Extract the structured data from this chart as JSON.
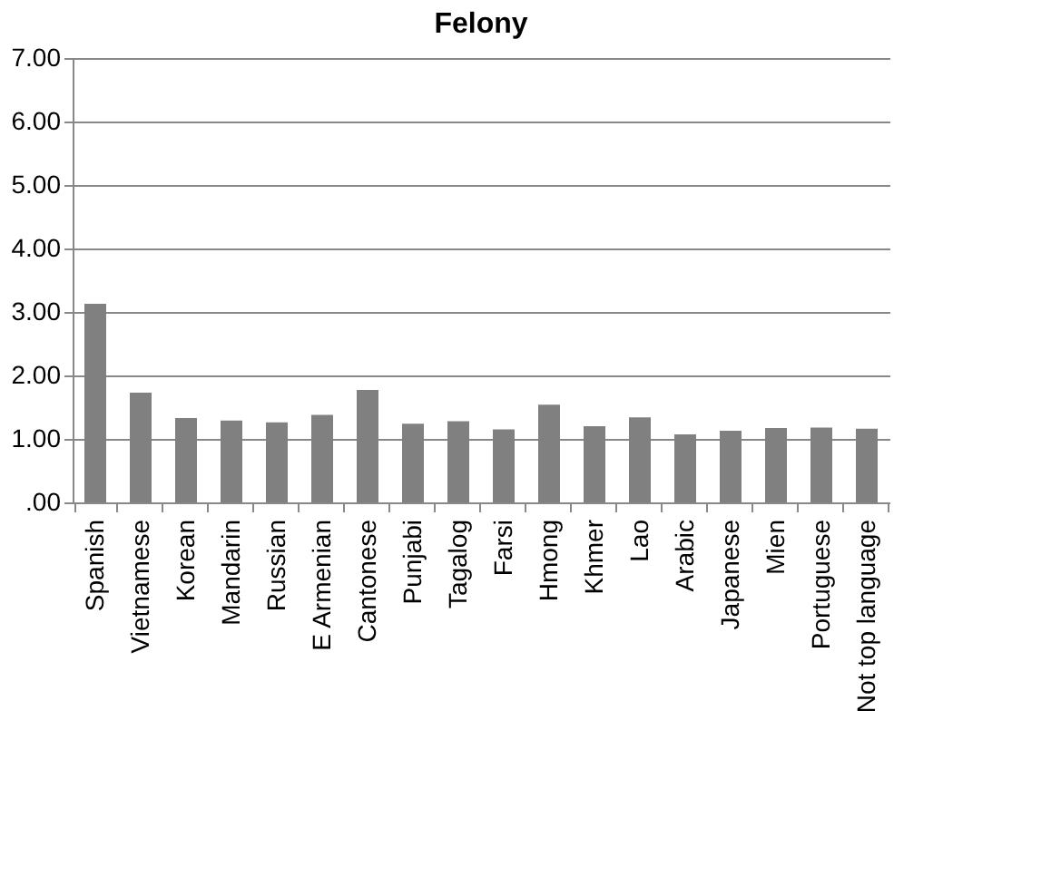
{
  "chart_data": {
    "type": "bar",
    "title": "Felony",
    "categories": [
      "Spanish",
      "Vietnamese",
      "Korean",
      "Mandarin",
      "Russian",
      "E Armenian",
      "Cantonese",
      "Punjabi",
      "Tagalog",
      "Farsi",
      "Hmong",
      "Khmer",
      "Lao",
      "Arabic",
      "Japanese",
      "Mien",
      "Portuguese",
      "Not top language"
    ],
    "values": [
      3.13,
      1.73,
      1.33,
      1.29,
      1.26,
      1.38,
      1.77,
      1.24,
      1.28,
      1.15,
      1.54,
      1.2,
      1.34,
      1.07,
      1.13,
      1.17,
      1.18,
      1.16
    ],
    "color": "#808080",
    "ylim": [
      0,
      7
    ],
    "yticks": [
      {
        "value": 0,
        "label": ".00"
      },
      {
        "value": 1,
        "label": "1.00"
      },
      {
        "value": 2,
        "label": "2.00"
      },
      {
        "value": 3,
        "label": "3.00"
      },
      {
        "value": 4,
        "label": "4.00"
      },
      {
        "value": 5,
        "label": "5.00"
      },
      {
        "value": 6,
        "label": "6.00"
      },
      {
        "value": 7,
        "label": "7.00"
      }
    ],
    "grid": "y",
    "legend": false
  }
}
